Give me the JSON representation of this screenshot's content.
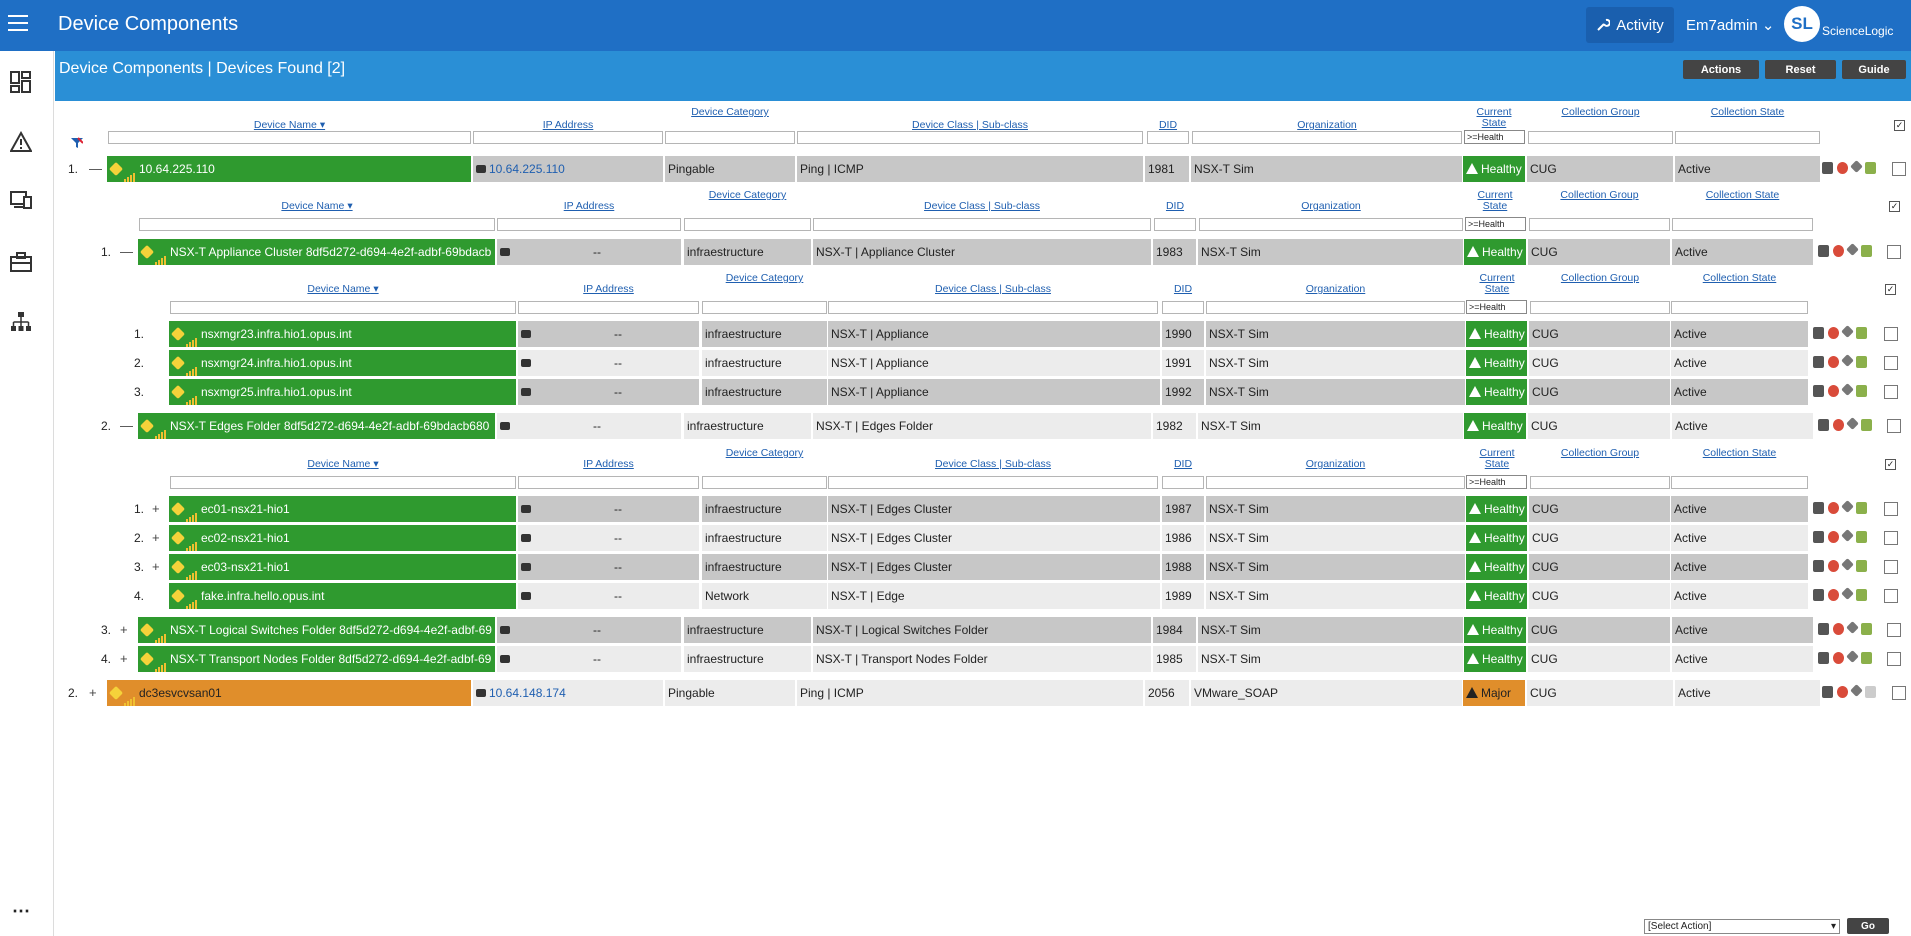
{
  "topbar": {
    "title": "Device Components",
    "activity_label": "Activity",
    "user": "Em7admin",
    "logo_initials": "SL",
    "logo_text": "ScienceLogic"
  },
  "sidebar": {
    "items": [
      "dashboard-icon",
      "alert-icon",
      "devices-icon",
      "toolbox-icon",
      "topology-icon",
      "more-icon"
    ]
  },
  "subheader": {
    "title": "Device Components | Devices Found [2]",
    "buttons": {
      "actions": "Actions",
      "reset": "Reset",
      "guide": "Guide"
    }
  },
  "columns": {
    "device_name": "Device Name",
    "ip": "IP Address",
    "category": "Device Category",
    "class": "Device Class | Sub-class",
    "did": "DID",
    "org": "Organization",
    "state": "Current State",
    "group": "Collection Group",
    "cstate": "Collection State",
    "health_filter": ">=Health"
  },
  "rows": {
    "r1": {
      "num": "1.",
      "toggle": "—",
      "name": "10.64.225.110",
      "ip": "10.64.225.110",
      "category": "Pingable",
      "class": "Ping | ICMP",
      "did": "1981",
      "org": "NSX-T Sim",
      "state": "Healthy",
      "group": "CUG",
      "cstate": "Active"
    },
    "r2": {
      "num": "1.",
      "toggle": "—",
      "name": "NSX-T Appliance Cluster 8df5d272-d694-4e2f-adbf-69bdacb",
      "ip": "--",
      "category": "infraestructure",
      "class": "NSX-T | Appliance Cluster",
      "did": "1983",
      "org": "NSX-T Sim",
      "state": "Healthy",
      "group": "CUG",
      "cstate": "Active"
    },
    "r3": {
      "num": "1.",
      "name": "nsxmgr23.infra.hio1.opus.int",
      "ip": "--",
      "category": "infraestructure",
      "class": "NSX-T | Appliance",
      "did": "1990",
      "org": "NSX-T Sim",
      "state": "Healthy",
      "group": "CUG",
      "cstate": "Active"
    },
    "r4": {
      "num": "2.",
      "name": "nsxmgr24.infra.hio1.opus.int",
      "ip": "--",
      "category": "infraestructure",
      "class": "NSX-T | Appliance",
      "did": "1991",
      "org": "NSX-T Sim",
      "state": "Healthy",
      "group": "CUG",
      "cstate": "Active"
    },
    "r5": {
      "num": "3.",
      "name": "nsxmgr25.infra.hio1.opus.int",
      "ip": "--",
      "category": "infraestructure",
      "class": "NSX-T | Appliance",
      "did": "1992",
      "org": "NSX-T Sim",
      "state": "Healthy",
      "group": "CUG",
      "cstate": "Active"
    },
    "r6": {
      "num": "2.",
      "toggle": "—",
      "name": "NSX-T Edges Folder 8df5d272-d694-4e2f-adbf-69bdacb680",
      "ip": "--",
      "category": "infraestructure",
      "class": "NSX-T | Edges Folder",
      "did": "1982",
      "org": "NSX-T Sim",
      "state": "Healthy",
      "group": "CUG",
      "cstate": "Active"
    },
    "r7": {
      "num": "1.",
      "toggle": "+",
      "name": "ec01-nsx21-hio1",
      "ip": "--",
      "category": "infraestructure",
      "class": "NSX-T | Edges Cluster",
      "did": "1987",
      "org": "NSX-T Sim",
      "state": "Healthy",
      "group": "CUG",
      "cstate": "Active"
    },
    "r8": {
      "num": "2.",
      "toggle": "+",
      "name": "ec02-nsx21-hio1",
      "ip": "--",
      "category": "infraestructure",
      "class": "NSX-T | Edges Cluster",
      "did": "1986",
      "org": "NSX-T Sim",
      "state": "Healthy",
      "group": "CUG",
      "cstate": "Active"
    },
    "r9": {
      "num": "3.",
      "toggle": "+",
      "name": "ec03-nsx21-hio1",
      "ip": "--",
      "category": "infraestructure",
      "class": "NSX-T | Edges Cluster",
      "did": "1988",
      "org": "NSX-T Sim",
      "state": "Healthy",
      "group": "CUG",
      "cstate": "Active"
    },
    "r10": {
      "num": "4.",
      "name": "fake.infra.hello.opus.int",
      "ip": "--",
      "category": "Network",
      "class": "NSX-T | Edge",
      "did": "1989",
      "org": "NSX-T Sim",
      "state": "Healthy",
      "group": "CUG",
      "cstate": "Active"
    },
    "r11": {
      "num": "3.",
      "toggle": "+",
      "name": "NSX-T Logical Switches Folder 8df5d272-d694-4e2f-adbf-69",
      "ip": "--",
      "category": "infraestructure",
      "class": "NSX-T | Logical Switches Folder",
      "did": "1984",
      "org": "NSX-T Sim",
      "state": "Healthy",
      "group": "CUG",
      "cstate": "Active"
    },
    "r12": {
      "num": "4.",
      "toggle": "+",
      "name": "NSX-T Transport Nodes Folder 8df5d272-d694-4e2f-adbf-69",
      "ip": "--",
      "category": "infraestructure",
      "class": "NSX-T | Transport Nodes Folder",
      "did": "1985",
      "org": "NSX-T Sim",
      "state": "Healthy",
      "group": "CUG",
      "cstate": "Active"
    },
    "r13": {
      "num": "2.",
      "toggle": "+",
      "name": "dc3esvcvsan01",
      "ip": "10.64.148.174",
      "category": "Pingable",
      "class": "Ping | ICMP",
      "did": "2056",
      "org": "VMware_SOAP",
      "state": "Major",
      "group": "CUG",
      "cstate": "Active"
    }
  },
  "footer": {
    "select_action": "[Select Action]",
    "go": "Go"
  },
  "colors": {
    "topbar": "#1f6fc5",
    "subheader": "#2a8fd6",
    "healthy": "#2f9a2f",
    "major": "#e08e2b"
  }
}
